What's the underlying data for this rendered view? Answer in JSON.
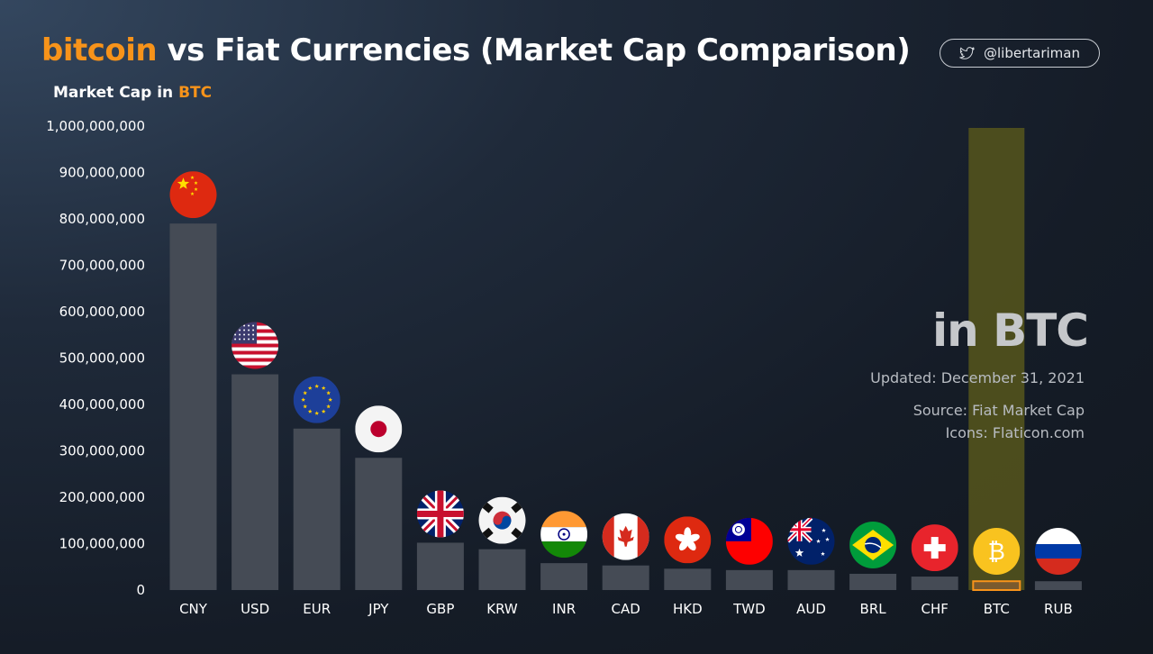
{
  "title": {
    "accent": "bitcoin",
    "rest": " vs Fiat Currencies (Market Cap Comparison)"
  },
  "social": {
    "icon": "twitter-bird-icon",
    "handle": "@libertariman"
  },
  "ylabel": {
    "main": "Market Cap in ",
    "accent": "BTC"
  },
  "overlay": {
    "big": "in BTC",
    "updated": "Updated: December 31, 2021",
    "source": "Source: Fiat Market Cap",
    "icons": "Icons: Flaticon.com"
  },
  "colors": {
    "accent": "#f7931a",
    "bar": "#454b55",
    "btc_highlight": "#5b5a1c"
  },
  "chart_data": {
    "type": "bar",
    "ylim": [
      0,
      1000000000
    ],
    "yticks": [
      "0",
      "100,000,000",
      "200,000,000",
      "300,000,000",
      "400,000,000",
      "500,000,000",
      "600,000,000",
      "700,000,000",
      "800,000,000",
      "900,000,000",
      "1,000,000,000"
    ],
    "categories": [
      "CNY",
      "USD",
      "EUR",
      "JPY",
      "GBP",
      "KRW",
      "INR",
      "CAD",
      "HKD",
      "TWD",
      "AUD",
      "BRL",
      "CHF",
      "BTC",
      "RUB"
    ],
    "values": [
      790000000,
      465000000,
      348000000,
      285000000,
      102000000,
      88000000,
      58000000,
      53000000,
      46000000,
      43000000,
      43000000,
      35000000,
      29000000,
      19000000,
      19000000
    ],
    "flag_icons": [
      "china-flag-icon",
      "usa-flag-icon",
      "eu-flag-icon",
      "japan-flag-icon",
      "uk-flag-icon",
      "south-korea-flag-icon",
      "india-flag-icon",
      "canada-flag-icon",
      "hong-kong-flag-icon",
      "taiwan-flag-icon",
      "australia-flag-icon",
      "brazil-flag-icon",
      "switzerland-flag-icon",
      "bitcoin-icon",
      "russia-flag-icon"
    ],
    "highlight": "BTC",
    "grid": false
  }
}
